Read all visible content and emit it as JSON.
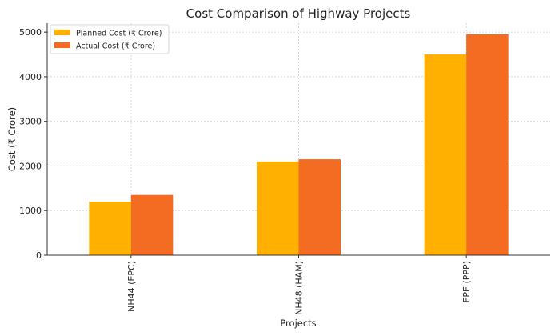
{
  "chart_data": {
    "type": "bar",
    "title": "Cost Comparison of Highway Projects",
    "xlabel": "Projects",
    "ylabel": "Cost (₹ Crore)",
    "categories": [
      "NH44 (EPC)",
      "NH48 (HAM)",
      "EPE (PPP)"
    ],
    "series": [
      {
        "name": "Planned Cost (₹ Crore)",
        "values": [
          1200,
          2100,
          4500
        ],
        "color": "#FFB000"
      },
      {
        "name": "Actual Cost (₹ Crore)",
        "values": [
          1350,
          2150,
          4950
        ],
        "color": "#F46B22"
      }
    ],
    "ylim": [
      0,
      5200
    ],
    "yticks": [
      0,
      1000,
      2000,
      3000,
      4000,
      5000
    ],
    "grid": true,
    "legend_position": "top-left"
  }
}
